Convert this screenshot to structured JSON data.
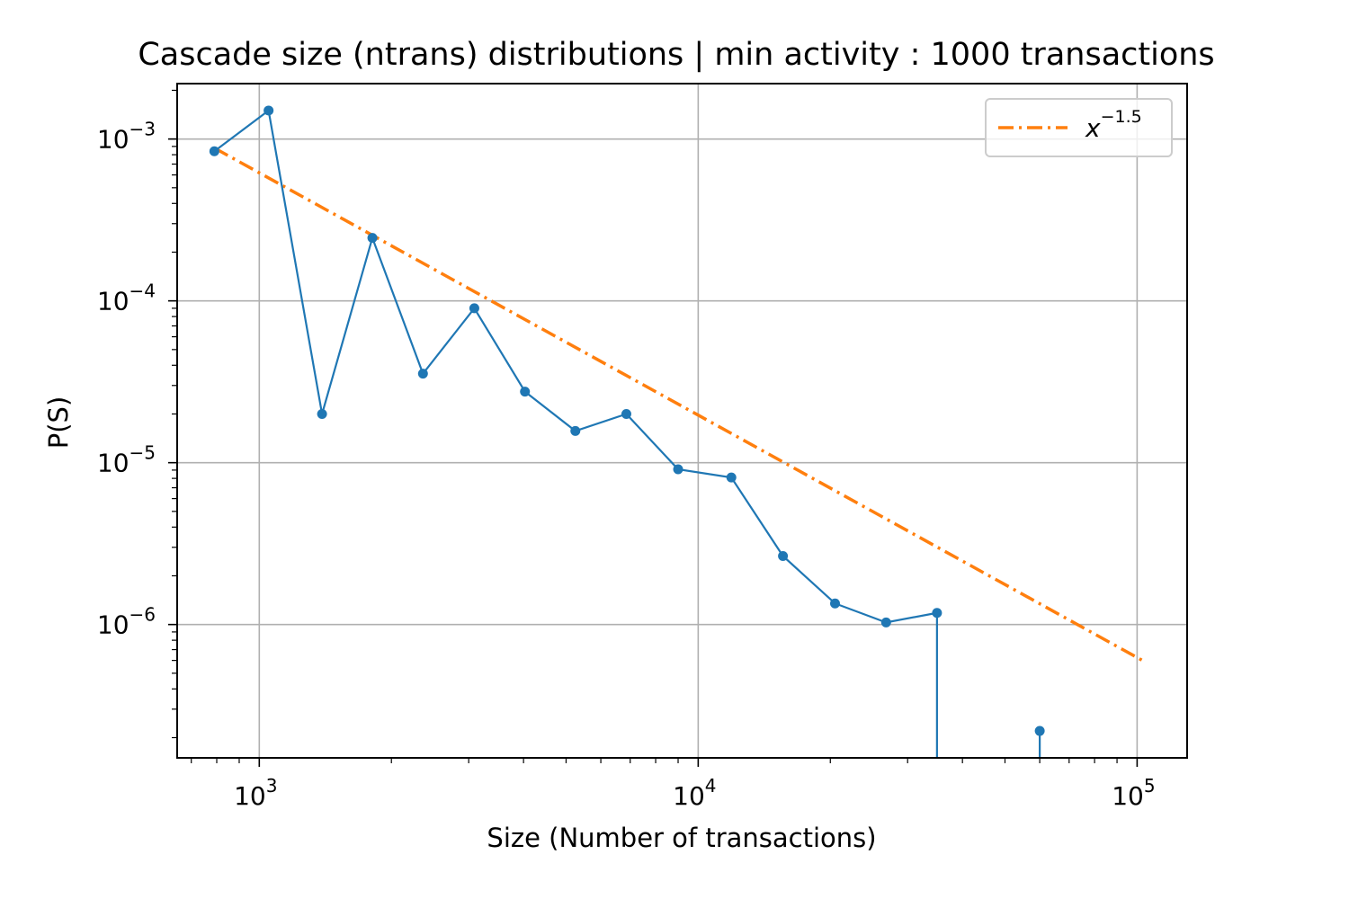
{
  "chart_data": {
    "type": "line",
    "title": "Cascade size (ntrans) distributions | min activity : 1000 transactions",
    "xlabel": "Size (Number of transactions)",
    "ylabel": "P(S)",
    "xscale": "log",
    "yscale": "log",
    "xlim": [
      650,
      130000
    ],
    "ylim": [
      1.5e-07,
      0.0022
    ],
    "grid": true,
    "legend_position": "top-right",
    "x_ticks": [
      {
        "value": 1000,
        "base": "10",
        "exp": "3"
      },
      {
        "value": 10000,
        "base": "10",
        "exp": "4"
      },
      {
        "value": 100000,
        "base": "10",
        "exp": "5"
      }
    ],
    "y_ticks": [
      {
        "value": 0.001,
        "base": "10",
        "exp": "−3"
      },
      {
        "value": 0.0001,
        "base": "10",
        "exp": "−4"
      },
      {
        "value": 1e-05,
        "base": "10",
        "exp": "−5"
      },
      {
        "value": 1e-06,
        "base": "10",
        "exp": "−6"
      }
    ],
    "series": [
      {
        "name": "",
        "kind": "line-markers",
        "color": "#1f77b4",
        "x": [
          790,
          1050,
          1390,
          1810,
          2360,
          3090,
          4030,
          5250,
          6860,
          9000,
          11900,
          15600,
          20500,
          26800,
          35000,
          60000
        ],
        "y": [
          0.00084,
          0.0015,
          2e-05,
          0.000245,
          3.55e-05,
          9e-05,
          2.75e-05,
          1.57e-05,
          2e-05,
          9.1e-06,
          8.1e-06,
          2.65e-06,
          1.35e-06,
          1.03e-06,
          1.18e-06,
          2.2e-07
        ],
        "nonpositive_after_index": 14,
        "dropline_x": [
          35000,
          60000
        ]
      },
      {
        "name": "x^−1.5",
        "legend_base": "x",
        "legend_exp": "−1.5",
        "kind": "dashdot",
        "color": "#ff7f0e",
        "exponent": -1.5,
        "x": [
          790,
          104000
        ],
        "y": [
          0.00088,
          5.9e-07
        ]
      }
    ]
  }
}
